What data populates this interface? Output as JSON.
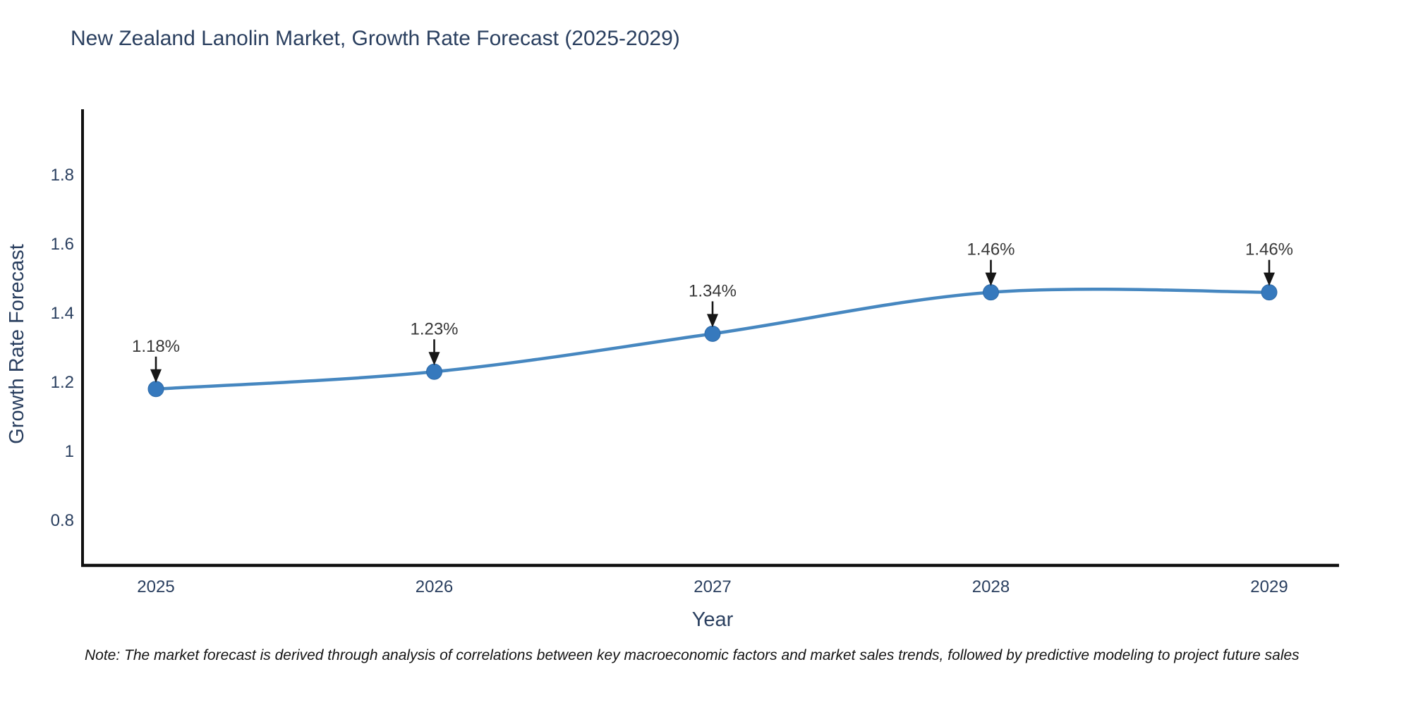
{
  "title": "New Zealand Lanolin Market, Growth Rate Forecast (2025-2029)",
  "note": "Note: The market forecast is derived through analysis of correlations between key macroeconomic factors and market sales trends, followed by predictive modeling to project future sales",
  "chart_data": {
    "type": "line",
    "title": "New Zealand Lanolin Market, Growth Rate Forecast (2025-2029)",
    "x": [
      2025,
      2026,
      2027,
      2028,
      2029
    ],
    "values": [
      1.18,
      1.23,
      1.34,
      1.46,
      1.46
    ],
    "point_labels": [
      "1.18%",
      "1.23%",
      "1.34%",
      "1.46%",
      "1.46%"
    ],
    "xlabel": "Year",
    "ylabel": "Growth Rate Forecast",
    "xtick_labels": [
      "2025",
      "2026",
      "2027",
      "2028",
      "2029"
    ],
    "yticks": [
      0.8,
      1.0,
      1.2,
      1.4,
      1.6,
      1.8
    ],
    "ytick_labels": [
      "0.8",
      "1",
      "1.2",
      "1.4",
      "1.6",
      "1.8"
    ],
    "ylim": [
      0.66,
      1.99
    ],
    "grid": false,
    "legend": "none",
    "line_shape": "spline",
    "colors": {
      "line": "#4687c0",
      "marker": "#3679bd",
      "marker_edge": "#2f6ba8",
      "axis_line": "#101010",
      "axis_text": "#2a3f5f",
      "annotation_text": "#383838",
      "arrow": "#161616"
    }
  }
}
